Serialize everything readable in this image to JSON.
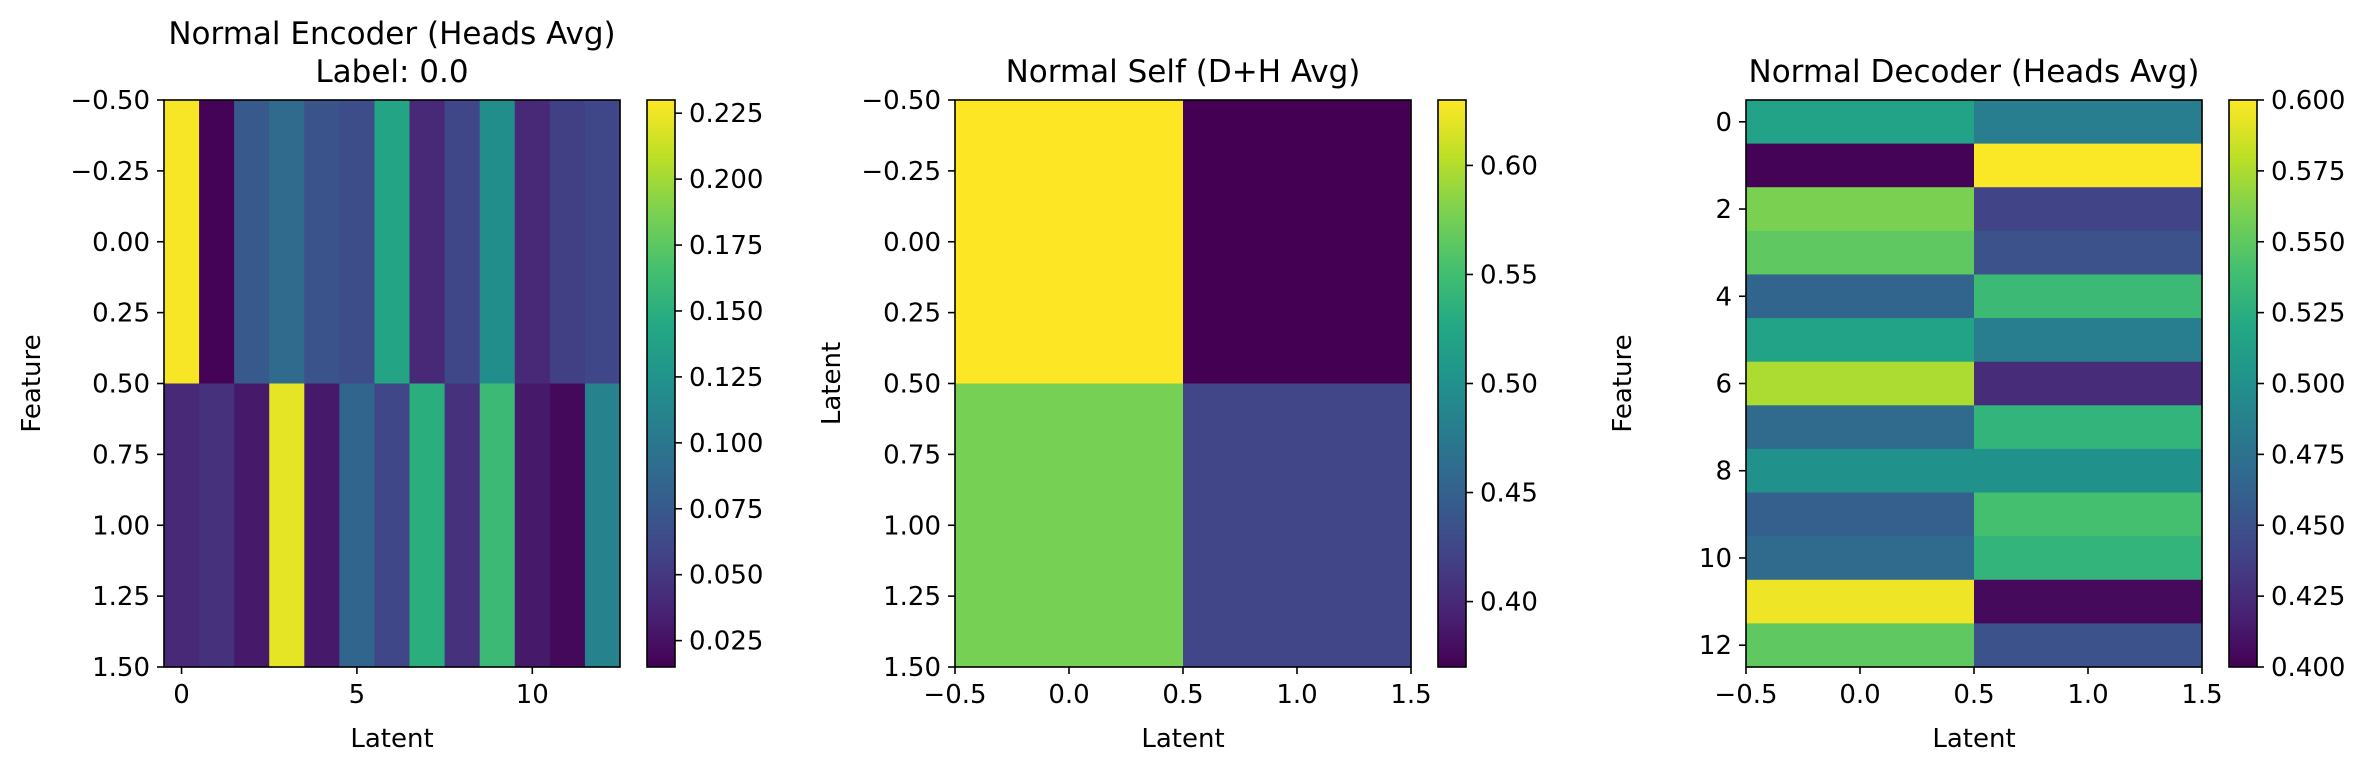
{
  "chart_data": [
    {
      "type": "heatmap",
      "title": "Normal Encoder (Heads Avg)",
      "subtitle": "Label: 0.0",
      "xlabel": "Latent",
      "ylabel": "Feature",
      "rows": 2,
      "cols": 13,
      "x_ticks": [
        0,
        5,
        10
      ],
      "x_tick_labels": [
        "0",
        "5",
        "10"
      ],
      "y_ticks": [
        -0.5,
        -0.25,
        0.0,
        0.25,
        0.5,
        0.75,
        1.0,
        1.25,
        1.5
      ],
      "y_tick_labels": [
        "−0.50",
        "−0.25",
        "0.00",
        "0.25",
        "0.50",
        "0.75",
        "1.00",
        "1.25",
        "1.50"
      ],
      "xlim": [
        -0.5,
        12.5
      ],
      "ylim": [
        1.5,
        -0.5
      ],
      "vmin": 0.015,
      "vmax": 0.23,
      "colorbar_ticks": [
        0.025,
        0.05,
        0.075,
        0.1,
        0.125,
        0.15,
        0.175,
        0.2,
        0.225
      ],
      "colorbar_tick_labels": [
        "0.025",
        "0.050",
        "0.075",
        "0.100",
        "0.125",
        "0.150",
        "0.175",
        "0.200",
        "0.225"
      ],
      "values": [
        [
          0.228,
          0.016,
          0.075,
          0.09,
          0.07,
          0.065,
          0.14,
          0.04,
          0.06,
          0.12,
          0.04,
          0.055,
          0.06
        ],
        [
          0.04,
          0.045,
          0.03,
          0.222,
          0.03,
          0.085,
          0.06,
          0.15,
          0.045,
          0.16,
          0.03,
          0.02,
          0.11
        ]
      ]
    },
    {
      "type": "heatmap",
      "title": "Normal Self (D+H Avg)",
      "xlabel": "Latent",
      "ylabel": "Latent",
      "rows": 2,
      "cols": 2,
      "x_ticks": [
        -0.5,
        0.0,
        0.5,
        1.0,
        1.5
      ],
      "x_tick_labels": [
        "−0.5",
        "0.0",
        "0.5",
        "1.0",
        "1.5"
      ],
      "y_ticks": [
        -0.5,
        -0.25,
        0.0,
        0.25,
        0.5,
        0.75,
        1.0,
        1.25,
        1.5
      ],
      "y_tick_labels": [
        "−0.50",
        "−0.25",
        "0.00",
        "0.25",
        "0.50",
        "0.75",
        "1.00",
        "1.25",
        "1.50"
      ],
      "xlim": [
        -0.5,
        1.5
      ],
      "ylim": [
        1.5,
        -0.5
      ],
      "vmin": 0.37,
      "vmax": 0.63,
      "colorbar_ticks": [
        0.4,
        0.45,
        0.5,
        0.55,
        0.6
      ],
      "colorbar_tick_labels": [
        "0.40",
        "0.45",
        "0.50",
        "0.55",
        "0.60"
      ],
      "values": [
        [
          0.63,
          0.37
        ],
        [
          0.576,
          0.424
        ]
      ]
    },
    {
      "type": "heatmap",
      "title": "Normal Decoder (Heads Avg)",
      "xlabel": "Latent",
      "ylabel": "Feature",
      "rows": 13,
      "cols": 2,
      "x_ticks": [
        -0.5,
        0.0,
        0.5,
        1.0,
        1.5
      ],
      "x_tick_labels": [
        "−0.5",
        "0.0",
        "0.5",
        "1.0",
        "1.5"
      ],
      "y_ticks": [
        0,
        2,
        4,
        6,
        8,
        10,
        12
      ],
      "y_tick_labels": [
        "0",
        "2",
        "4",
        "6",
        "8",
        "10",
        "12"
      ],
      "xlim": [
        -0.5,
        1.5
      ],
      "ylim": [
        12.5,
        -0.5
      ],
      "vmin": 0.4,
      "vmax": 0.6,
      "colorbar_ticks": [
        0.4,
        0.425,
        0.45,
        0.475,
        0.5,
        0.525,
        0.55,
        0.575,
        0.6
      ],
      "colorbar_tick_labels": [
        "0.400",
        "0.425",
        "0.450",
        "0.475",
        "0.500",
        "0.525",
        "0.550",
        "0.575",
        "0.600"
      ],
      "values": [
        [
          0.515,
          0.485
        ],
        [
          0.401,
          0.599
        ],
        [
          0.56,
          0.44
        ],
        [
          0.55,
          0.45
        ],
        [
          0.465,
          0.535
        ],
        [
          0.515,
          0.485
        ],
        [
          0.575,
          0.425
        ],
        [
          0.47,
          0.53
        ],
        [
          0.5,
          0.5
        ],
        [
          0.46,
          0.54
        ],
        [
          0.47,
          0.53
        ],
        [
          0.595,
          0.405
        ],
        [
          0.55,
          0.45
        ]
      ]
    }
  ]
}
